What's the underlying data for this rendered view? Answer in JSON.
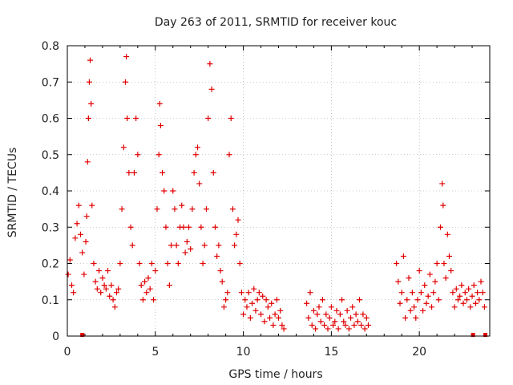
{
  "chart_data": {
    "type": "scatter",
    "title": "Day 263 of 2011, SRMTID for receiver kouc",
    "xlabel": "GPS time / hours",
    "ylabel": "SRMTID / TECUs",
    "xlim": [
      0,
      24
    ],
    "ylim": [
      0,
      0.8
    ],
    "xticks": [
      0,
      5,
      10,
      15,
      20
    ],
    "xtick_labels": [
      "0",
      "5",
      "10",
      "15",
      "20"
    ],
    "yticks": [
      0,
      0.1,
      0.2,
      0.3,
      0.4,
      0.5,
      0.6,
      0.7,
      0.8
    ],
    "ytick_labels": [
      "0",
      "0.1",
      "0.2",
      "0.3",
      "0.4",
      "0.5",
      "0.6",
      "0.7",
      "0.8"
    ],
    "grid": true,
    "marker": "+",
    "color": "#e00000",
    "series": [
      {
        "name": "SRMTID",
        "points": [
          [
            0.05,
            0.17
          ],
          [
            0.15,
            0.21
          ],
          [
            0.25,
            0.14
          ],
          [
            0.35,
            0.12
          ],
          [
            0.45,
            0.27
          ],
          [
            0.55,
            0.31
          ],
          [
            0.65,
            0.36
          ],
          [
            0.75,
            0.28
          ],
          [
            0.85,
            0.23
          ],
          [
            0.95,
            0.17
          ],
          [
            1.05,
            0.26
          ],
          [
            1.1,
            0.33
          ],
          [
            1.15,
            0.48
          ],
          [
            1.2,
            0.6
          ],
          [
            1.25,
            0.7
          ],
          [
            1.3,
            0.76
          ],
          [
            1.35,
            0.64
          ],
          [
            1.4,
            0.36
          ],
          [
            1.5,
            0.2
          ],
          [
            1.6,
            0.15
          ],
          [
            1.7,
            0.13
          ],
          [
            1.8,
            0.18
          ],
          [
            1.9,
            0.12
          ],
          [
            2.0,
            0.16
          ],
          [
            2.1,
            0.14
          ],
          [
            2.2,
            0.13
          ],
          [
            2.3,
            0.18
          ],
          [
            2.4,
            0.11
          ],
          [
            2.5,
            0.14
          ],
          [
            2.6,
            0.1
          ],
          [
            2.7,
            0.08
          ],
          [
            2.8,
            0.12
          ],
          [
            2.9,
            0.13
          ],
          [
            3.0,
            0.2
          ],
          [
            3.1,
            0.35
          ],
          [
            3.2,
            0.52
          ],
          [
            3.3,
            0.7
          ],
          [
            3.35,
            0.77
          ],
          [
            3.4,
            0.6
          ],
          [
            3.5,
            0.45
          ],
          [
            3.6,
            0.3
          ],
          [
            3.7,
            0.25
          ],
          [
            3.8,
            0.45
          ],
          [
            3.9,
            0.6
          ],
          [
            4.0,
            0.5
          ],
          [
            4.1,
            0.2
          ],
          [
            4.2,
            0.14
          ],
          [
            4.3,
            0.1
          ],
          [
            4.4,
            0.15
          ],
          [
            4.5,
            0.12
          ],
          [
            4.6,
            0.16
          ],
          [
            4.7,
            0.13
          ],
          [
            4.8,
            0.2
          ],
          [
            4.9,
            0.1
          ],
          [
            5.0,
            0.18
          ],
          [
            5.1,
            0.35
          ],
          [
            5.2,
            0.5
          ],
          [
            5.25,
            0.64
          ],
          [
            5.3,
            0.58
          ],
          [
            5.4,
            0.45
          ],
          [
            5.5,
            0.4
          ],
          [
            5.6,
            0.3
          ],
          [
            5.7,
            0.2
          ],
          [
            5.8,
            0.14
          ],
          [
            5.9,
            0.25
          ],
          [
            6.0,
            0.4
          ],
          [
            6.1,
            0.35
          ],
          [
            6.2,
            0.25
          ],
          [
            6.3,
            0.2
          ],
          [
            6.4,
            0.3
          ],
          [
            6.5,
            0.36
          ],
          [
            6.6,
            0.3
          ],
          [
            6.7,
            0.23
          ],
          [
            6.8,
            0.26
          ],
          [
            6.9,
            0.3
          ],
          [
            7.0,
            0.24
          ],
          [
            7.1,
            0.35
          ],
          [
            7.2,
            0.45
          ],
          [
            7.3,
            0.5
          ],
          [
            7.4,
            0.52
          ],
          [
            7.5,
            0.42
          ],
          [
            7.6,
            0.3
          ],
          [
            7.7,
            0.2
          ],
          [
            7.8,
            0.25
          ],
          [
            7.9,
            0.35
          ],
          [
            8.0,
            0.6
          ],
          [
            8.1,
            0.75
          ],
          [
            8.2,
            0.68
          ],
          [
            8.3,
            0.45
          ],
          [
            8.4,
            0.3
          ],
          [
            8.5,
            0.22
          ],
          [
            8.6,
            0.25
          ],
          [
            8.7,
            0.18
          ],
          [
            8.8,
            0.15
          ],
          [
            8.9,
            0.08
          ],
          [
            9.0,
            0.1
          ],
          [
            9.1,
            0.12
          ],
          [
            9.2,
            0.5
          ],
          [
            9.3,
            0.6
          ],
          [
            9.4,
            0.35
          ],
          [
            9.5,
            0.25
          ],
          [
            9.6,
            0.28
          ],
          [
            9.7,
            0.32
          ],
          [
            9.8,
            0.2
          ],
          [
            9.9,
            0.12
          ],
          [
            10.0,
            0.06
          ],
          [
            10.1,
            0.1
          ],
          [
            10.2,
            0.08
          ],
          [
            10.3,
            0.12
          ],
          [
            10.4,
            0.05
          ],
          [
            10.5,
            0.09
          ],
          [
            10.6,
            0.13
          ],
          [
            10.7,
            0.07
          ],
          [
            10.8,
            0.1
          ],
          [
            10.9,
            0.12
          ],
          [
            11.0,
            0.06
          ],
          [
            11.1,
            0.11
          ],
          [
            11.2,
            0.04
          ],
          [
            11.3,
            0.1
          ],
          [
            11.4,
            0.08
          ],
          [
            11.5,
            0.05
          ],
          [
            11.6,
            0.09
          ],
          [
            11.7,
            0.03
          ],
          [
            11.8,
            0.06
          ],
          [
            11.9,
            0.1
          ],
          [
            12.0,
            0.05
          ],
          [
            12.1,
            0.07
          ],
          [
            12.2,
            0.03
          ],
          [
            12.3,
            0.02
          ],
          [
            13.6,
            0.09
          ],
          [
            13.7,
            0.05
          ],
          [
            13.8,
            0.12
          ],
          [
            13.9,
            0.03
          ],
          [
            14.0,
            0.07
          ],
          [
            14.1,
            0.02
          ],
          [
            14.2,
            0.06
          ],
          [
            14.3,
            0.08
          ],
          [
            14.4,
            0.04
          ],
          [
            14.5,
            0.1
          ],
          [
            14.6,
            0.03
          ],
          [
            14.7,
            0.06
          ],
          [
            14.8,
            0.02
          ],
          [
            14.9,
            0.05
          ],
          [
            15.0,
            0.08
          ],
          [
            15.1,
            0.03
          ],
          [
            15.2,
            0.04
          ],
          [
            15.3,
            0.07
          ],
          [
            15.4,
            0.02
          ],
          [
            15.5,
            0.06
          ],
          [
            15.6,
            0.1
          ],
          [
            15.7,
            0.04
          ],
          [
            15.8,
            0.03
          ],
          [
            15.9,
            0.07
          ],
          [
            16.0,
            0.02
          ],
          [
            16.1,
            0.05
          ],
          [
            16.2,
            0.08
          ],
          [
            16.3,
            0.03
          ],
          [
            16.4,
            0.06
          ],
          [
            16.5,
            0.04
          ],
          [
            16.6,
            0.1
          ],
          [
            16.7,
            0.03
          ],
          [
            16.8,
            0.06
          ],
          [
            16.9,
            0.02
          ],
          [
            17.0,
            0.05
          ],
          [
            17.1,
            0.03
          ],
          [
            18.7,
            0.2
          ],
          [
            18.8,
            0.15
          ],
          [
            18.9,
            0.09
          ],
          [
            19.0,
            0.12
          ],
          [
            19.1,
            0.22
          ],
          [
            19.2,
            0.05
          ],
          [
            19.3,
            0.1
          ],
          [
            19.4,
            0.16
          ],
          [
            19.5,
            0.07
          ],
          [
            19.6,
            0.12
          ],
          [
            19.7,
            0.08
          ],
          [
            19.8,
            0.05
          ],
          [
            19.9,
            0.1
          ],
          [
            20.0,
            0.18
          ],
          [
            20.1,
            0.12
          ],
          [
            20.2,
            0.07
          ],
          [
            20.3,
            0.14
          ],
          [
            20.4,
            0.09
          ],
          [
            20.5,
            0.11
          ],
          [
            20.6,
            0.17
          ],
          [
            20.7,
            0.08
          ],
          [
            20.8,
            0.12
          ],
          [
            20.9,
            0.15
          ],
          [
            21.0,
            0.2
          ],
          [
            21.1,
            0.1
          ],
          [
            21.2,
            0.3
          ],
          [
            21.3,
            0.42
          ],
          [
            21.35,
            0.36
          ],
          [
            21.4,
            0.2
          ],
          [
            21.5,
            0.16
          ],
          [
            21.6,
            0.28
          ],
          [
            21.7,
            0.22
          ],
          [
            21.8,
            0.18
          ],
          [
            21.9,
            0.12
          ],
          [
            22.0,
            0.08
          ],
          [
            22.1,
            0.13
          ],
          [
            22.2,
            0.1
          ],
          [
            22.3,
            0.11
          ],
          [
            22.4,
            0.14
          ],
          [
            22.5,
            0.09
          ],
          [
            22.6,
            0.12
          ],
          [
            22.7,
            0.1
          ],
          [
            22.8,
            0.13
          ],
          [
            22.9,
            0.08
          ],
          [
            23.0,
            0.11
          ],
          [
            23.1,
            0.14
          ],
          [
            23.2,
            0.09
          ],
          [
            23.3,
            0.12
          ],
          [
            23.4,
            0.1
          ],
          [
            23.5,
            0.15
          ],
          [
            23.6,
            0.12
          ],
          [
            23.7,
            0.08
          ]
        ]
      }
    ],
    "baseline_markers": [
      0.85,
      23.05,
      23.75
    ]
  }
}
